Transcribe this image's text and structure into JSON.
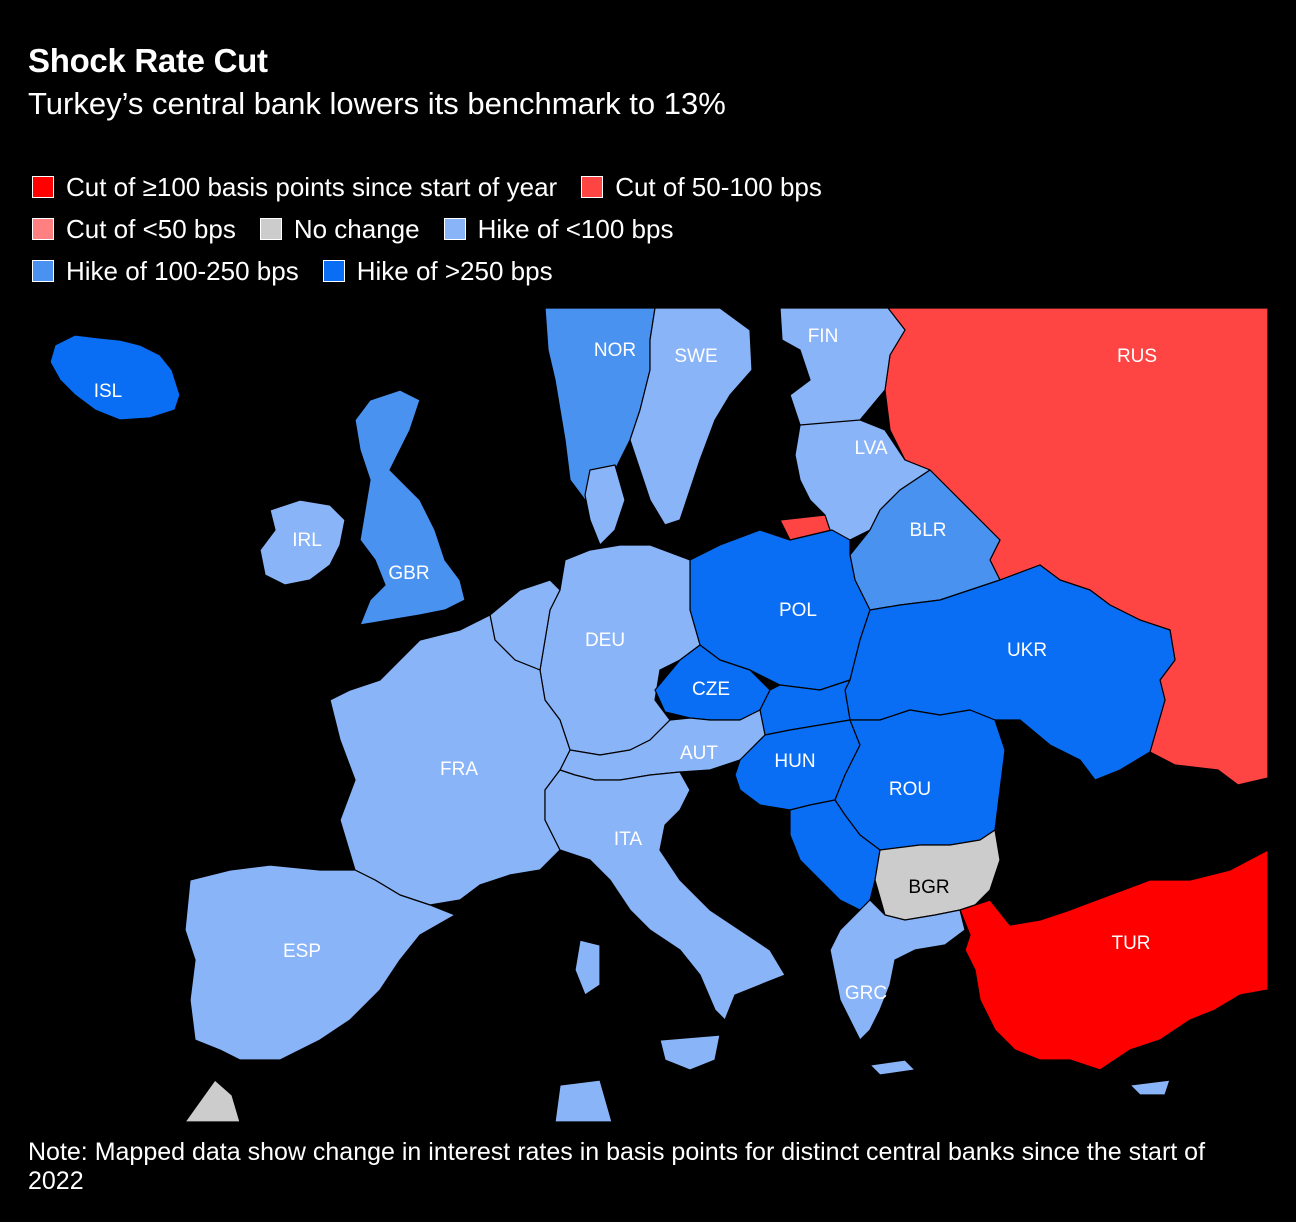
{
  "title": "Shock Rate Cut",
  "subtitle": "Turkey’s central bank lowers its benchmark to 13%",
  "legend": [
    {
      "key": "cut_100",
      "label": "Cut of ≥100 basis points since start of year",
      "color": "#ff0000"
    },
    {
      "key": "cut_50_100",
      "label": "Cut of 50-100 bps",
      "color": "#ff4444"
    },
    {
      "key": "cut_lt50",
      "label": "Cut of <50 bps",
      "color": "#ff8080"
    },
    {
      "key": "no_change",
      "label": "No change",
      "color": "#cccccc"
    },
    {
      "key": "hike_lt100",
      "label": "Hike of <100 bps",
      "color": "#8ab4f8"
    },
    {
      "key": "hike_100_250",
      "label": "Hike of 100-250 bps",
      "color": "#4a92f0"
    },
    {
      "key": "hike_gt250",
      "label": "Hike of >250 bps",
      "color": "#0a6ef5"
    }
  ],
  "countries": [
    {
      "code": "ISL",
      "category": "hike_gt250"
    },
    {
      "code": "NOR",
      "category": "hike_100_250"
    },
    {
      "code": "SWE",
      "category": "hike_lt100"
    },
    {
      "code": "FIN",
      "category": "hike_lt100"
    },
    {
      "code": "RUS",
      "category": "cut_50_100"
    },
    {
      "code": "LVA",
      "category": "hike_lt100"
    },
    {
      "code": "IRL",
      "category": "hike_lt100"
    },
    {
      "code": "GBR",
      "category": "hike_100_250"
    },
    {
      "code": "BLR",
      "category": "hike_100_250"
    },
    {
      "code": "POL",
      "category": "hike_gt250"
    },
    {
      "code": "DEU",
      "category": "hike_lt100"
    },
    {
      "code": "UKR",
      "category": "hike_gt250"
    },
    {
      "code": "CZE",
      "category": "hike_gt250"
    },
    {
      "code": "AUT",
      "category": "hike_lt100"
    },
    {
      "code": "HUN",
      "category": "hike_gt250"
    },
    {
      "code": "FRA",
      "category": "hike_lt100"
    },
    {
      "code": "ROU",
      "category": "hike_gt250"
    },
    {
      "code": "ITA",
      "category": "hike_lt100"
    },
    {
      "code": "BGR",
      "category": "no_change"
    },
    {
      "code": "TUR",
      "category": "cut_100"
    },
    {
      "code": "ESP",
      "category": "hike_lt100"
    },
    {
      "code": "GRC",
      "category": "hike_lt100"
    }
  ],
  "note": "Note: Mapped data show change in interest rates in basis points for distinct central banks since the start of 2022"
}
